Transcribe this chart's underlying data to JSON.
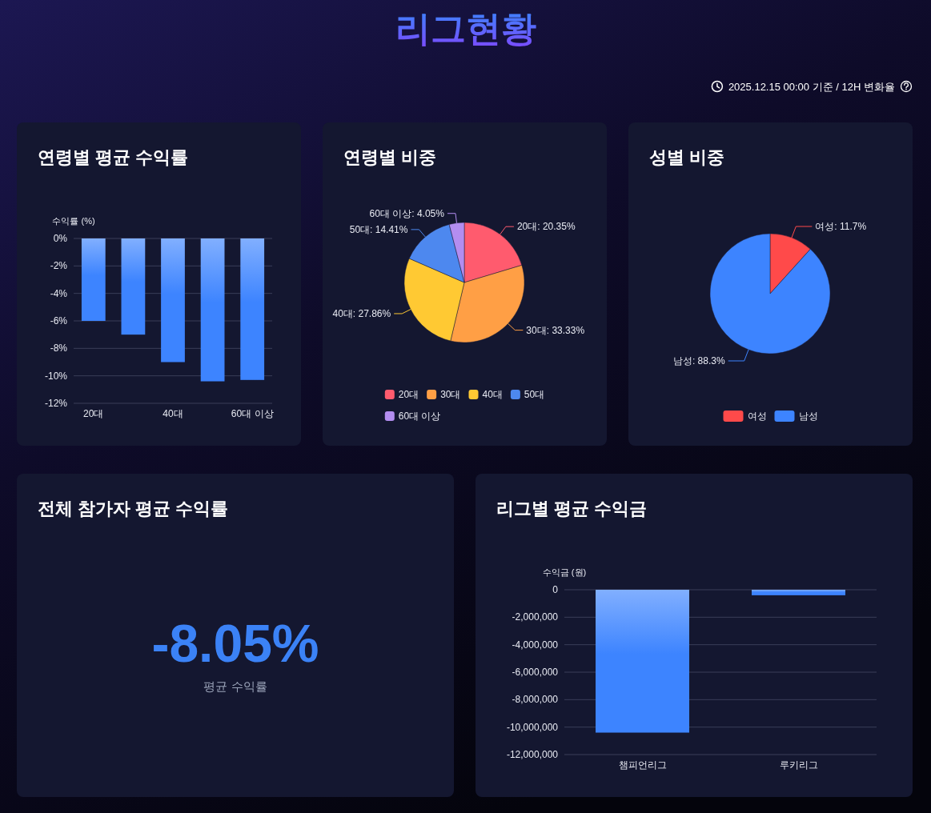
{
  "chart_data": [
    {
      "type": "other",
      "title": "리그현황",
      "annotations": [
        "2025.12.15 00:00 기준 / 12H 변화율"
      ]
    },
    {
      "type": "bar",
      "title": "연령별 평균 수익률",
      "ylabel": "수익률 (%)",
      "categories": [
        "20대",
        null,
        "40대",
        null,
        "60대 이상"
      ],
      "values": [
        -6.0,
        -7.0,
        -9.0,
        -10.4,
        -10.3
      ],
      "color": "#3d84ff",
      "ylim": [
        -12,
        0
      ],
      "yticks": [
        {
          "value": 0,
          "label": "0%"
        },
        {
          "value": -2,
          "label": "-2%"
        },
        {
          "value": -4,
          "label": "-4%"
        },
        {
          "value": -6,
          "label": "-6%"
        },
        {
          "value": -8,
          "label": "-8%"
        },
        {
          "value": -10,
          "label": "-10%"
        },
        {
          "value": -12,
          "label": "-12%"
        }
      ],
      "grid": "y"
    },
    {
      "type": "pie",
      "title": "연령별 비중",
      "categories": [
        "20대",
        "30대",
        "40대",
        "50대",
        "60대 이상"
      ],
      "values": [
        20.35,
        33.33,
        27.86,
        14.41,
        4.05
      ],
      "colors": [
        "#ff5b6e",
        "#ff9f45",
        "#ffc933",
        "#4d88ef",
        "#b38df0"
      ],
      "value_labels": [
        "20대: 20.35%",
        "30대: 33.33%",
        "40대: 27.86%",
        "50대: 14.41%",
        "60대 이상: 4.05%"
      ],
      "legend": "bottom"
    },
    {
      "type": "pie",
      "title": "성별 비중",
      "categories": [
        "여성",
        "남성"
      ],
      "values": [
        11.7,
        88.3
      ],
      "colors": [
        "#ff4a4a",
        "#3d84ff"
      ],
      "value_labels": [
        "여성: 11.7%",
        "남성: 88.3%"
      ],
      "legend": "bottom"
    },
    {
      "type": "other",
      "title": "전체 참가자 평균 수익률",
      "categories": [
        "평균 수익률"
      ],
      "values": [
        -8.05
      ],
      "value_labels": [
        "-8.05%"
      ]
    },
    {
      "type": "bar",
      "title": "리그별 평균 수익금",
      "ylabel": "수익금 (원)",
      "categories": [
        "챔피언리그",
        "루키리그"
      ],
      "values": [
        -10400000,
        -400000
      ],
      "color": "#3d84ff",
      "ylim": [
        -12000000,
        0
      ],
      "yticks": [
        0,
        {
          "value": -2000000,
          "label": "-2,000,000"
        },
        {
          "value": -4000000,
          "label": "-4,000,000"
        },
        {
          "value": -6000000,
          "label": "-6,000,000"
        },
        {
          "value": -8000000,
          "label": "-8,000,000"
        },
        {
          "value": -10000000,
          "label": "-10,000,000"
        },
        {
          "value": -12000000,
          "label": "-12,000,000"
        }
      ],
      "grid": "y"
    }
  ]
}
